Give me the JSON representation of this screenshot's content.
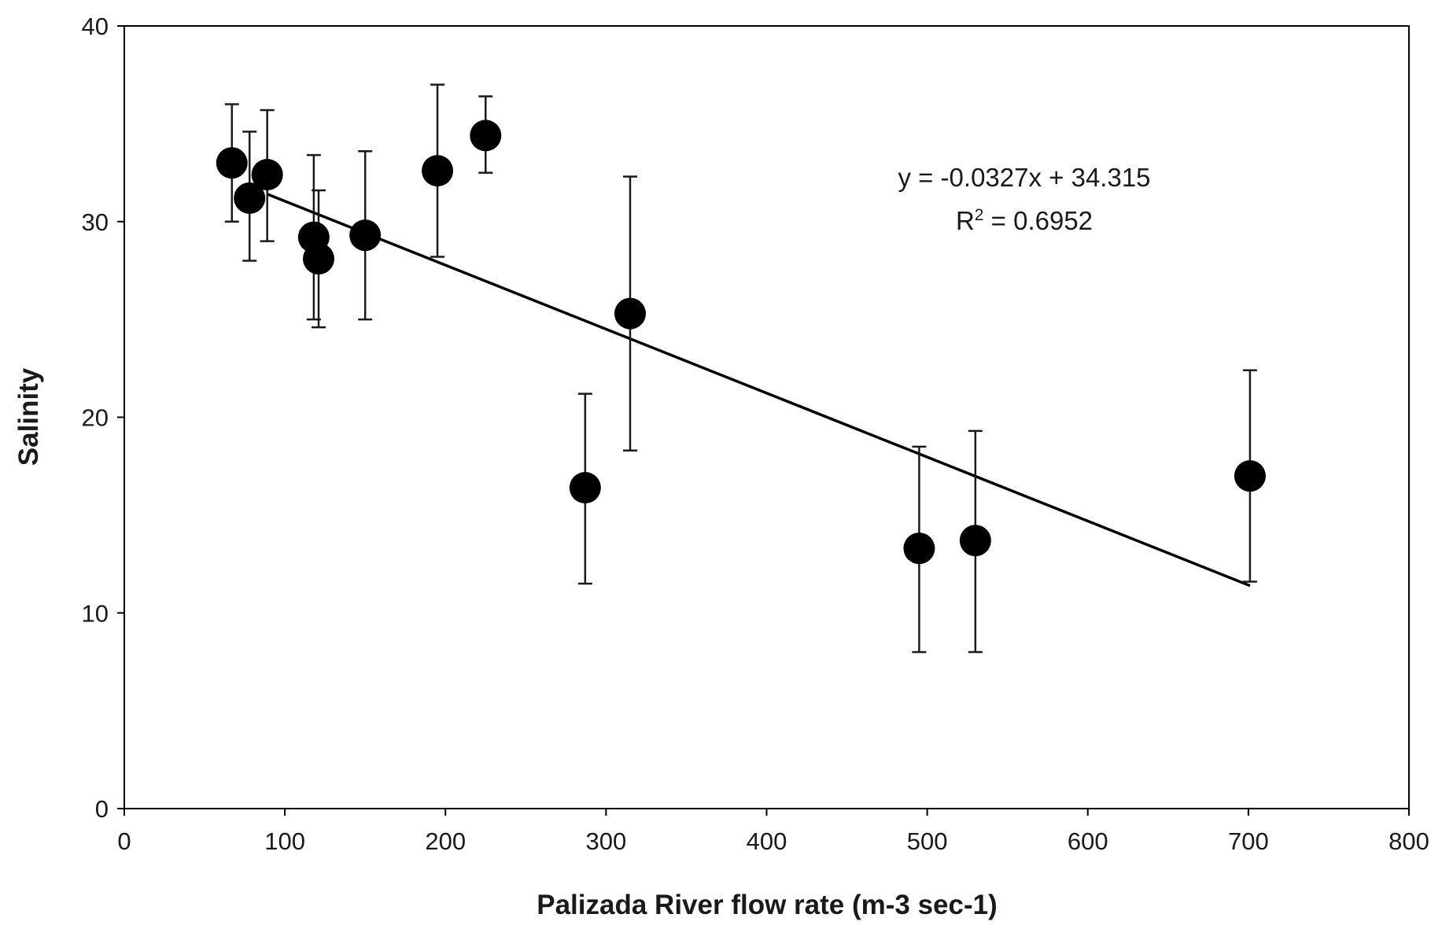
{
  "chart_data": {
    "type": "scatter",
    "title": "",
    "xlabel": "Palizada River flow rate (m-3 sec-1)",
    "ylabel": "Salinity",
    "xlim": [
      0,
      800
    ],
    "ylim": [
      0,
      40
    ],
    "x_ticks": [
      "0",
      "100",
      "200",
      "300",
      "400",
      "500",
      "600",
      "700",
      "800"
    ],
    "y_ticks": [
      "0",
      "10",
      "20",
      "30",
      "40"
    ],
    "grid": false,
    "legend": "none",
    "marker_color": "#000000",
    "points": [
      {
        "x": 67,
        "y": 33.0,
        "err_low": 30.0,
        "err_high": 36.0
      },
      {
        "x": 78,
        "y": 31.2,
        "err_low": 28.0,
        "err_high": 34.6
      },
      {
        "x": 89,
        "y": 32.4,
        "err_low": 29.0,
        "err_high": 35.7
      },
      {
        "x": 118,
        "y": 29.2,
        "err_low": 25.0,
        "err_high": 33.4
      },
      {
        "x": 121,
        "y": 28.1,
        "err_low": 24.6,
        "err_high": 31.6
      },
      {
        "x": 150,
        "y": 29.3,
        "err_low": 25.0,
        "err_high": 33.6
      },
      {
        "x": 195,
        "y": 32.6,
        "err_low": 28.2,
        "err_high": 37.0
      },
      {
        "x": 225,
        "y": 34.4,
        "err_low": 32.5,
        "err_high": 36.4
      },
      {
        "x": 287,
        "y": 16.4,
        "err_low": 11.5,
        "err_high": 21.2
      },
      {
        "x": 315,
        "y": 25.3,
        "err_low": 18.3,
        "err_high": 32.3
      },
      {
        "x": 495,
        "y": 13.3,
        "err_low": 8.0,
        "err_high": 18.5
      },
      {
        "x": 530,
        "y": 13.7,
        "err_low": 8.0,
        "err_high": 19.3
      },
      {
        "x": 701,
        "y": 17.0,
        "err_low": 11.6,
        "err_high": 22.4
      }
    ],
    "trendline": {
      "slope": -0.0327,
      "intercept": 34.315,
      "x_range": [
        89,
        701
      ],
      "equation": "y = -0.0327x + 34.315",
      "r2_prefix": "R",
      "r2_sup": "2",
      "r2_suffix": " = 0.6952"
    }
  }
}
